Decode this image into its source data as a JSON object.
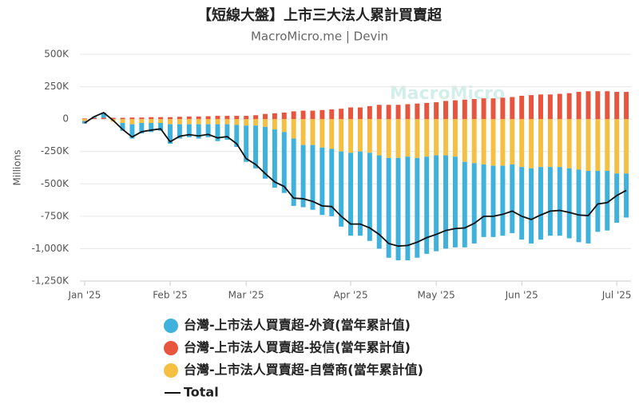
{
  "chart_data": {
    "type": "bar",
    "title": "【短線大盤】上市三大法人累計買賣超",
    "subtitle": "MacroMicro.me | Devin",
    "watermark": "MacroMicro",
    "y_label": "Millions",
    "ylim": [
      -1250000,
      500000
    ],
    "yticks": [
      {
        "value": 500000,
        "label": "500K"
      },
      {
        "value": 250000,
        "label": "250K"
      },
      0,
      {
        "value": -250000,
        "label": "-250K"
      },
      {
        "value": -500000,
        "label": "-500K"
      },
      {
        "value": -750000,
        "label": "-750K"
      },
      {
        "value": -1000000,
        "label": "-1,000K"
      },
      {
        "value": -1250000,
        "label": "-1,250K"
      }
    ],
    "categories": [
      "Jan '25",
      null,
      null,
      null,
      null,
      null,
      null,
      null,
      null,
      "Feb '25",
      null,
      null,
      null,
      null,
      null,
      null,
      null,
      "Mar '25",
      null,
      null,
      null,
      null,
      null,
      null,
      null,
      null,
      null,
      null,
      "Apr '25",
      null,
      null,
      null,
      null,
      null,
      null,
      null,
      null,
      "May '25",
      null,
      null,
      null,
      null,
      null,
      null,
      null,
      null,
      "Jun '25",
      null,
      null,
      null,
      null,
      null,
      null,
      null,
      null,
      null,
      "Jul '25",
      null
    ],
    "series": [
      {
        "name": "台灣-上市法人買賣超-外資(當年累計值)",
        "color": "#3fb1dd",
        "values": [
          -20000,
          10000,
          40000,
          0,
          -60000,
          -110000,
          -80000,
          -70000,
          -60000,
          -150000,
          -110000,
          -100000,
          -110000,
          -100000,
          -130000,
          -120000,
          -170000,
          -280000,
          -330000,
          -400000,
          -450000,
          -470000,
          -520000,
          -480000,
          -500000,
          -520000,
          -520000,
          -580000,
          -640000,
          -650000,
          -680000,
          -720000,
          -770000,
          -790000,
          -800000,
          -770000,
          -750000,
          -740000,
          -720000,
          -700000,
          -660000,
          -620000,
          -560000,
          -550000,
          -540000,
          -530000,
          -560000,
          -580000,
          -560000,
          -530000,
          -530000,
          -540000,
          -560000,
          -560000,
          -470000,
          -460000,
          -380000,
          -340000
        ]
      },
      {
        "name": "台灣-上市法人買賣超-投信(當年累計值)",
        "color": "#e8553e",
        "values": [
          5000,
          8000,
          10000,
          10000,
          10000,
          12000,
          12000,
          15000,
          15000,
          15000,
          18000,
          20000,
          20000,
          22000,
          25000,
          25000,
          25000,
          25000,
          30000,
          40000,
          45000,
          50000,
          60000,
          65000,
          65000,
          70000,
          75000,
          80000,
          90000,
          90000,
          100000,
          110000,
          110000,
          110000,
          115000,
          120000,
          125000,
          130000,
          140000,
          145000,
          150000,
          155000,
          160000,
          160000,
          165000,
          170000,
          180000,
          185000,
          190000,
          190000,
          195000,
          200000,
          210000,
          215000,
          215000,
          215000,
          210000,
          210000
        ]
      },
      {
        "name": "台灣-上市法人買賣超-自營商(當年累計值)",
        "color": "#f5bf42",
        "values": [
          -15000,
          0,
          0,
          -20000,
          -30000,
          -40000,
          -30000,
          -30000,
          -30000,
          -40000,
          -40000,
          -40000,
          -40000,
          -40000,
          -40000,
          -40000,
          -45000,
          -50000,
          -50000,
          -60000,
          -80000,
          -100000,
          -150000,
          -200000,
          -200000,
          -220000,
          -230000,
          -250000,
          -260000,
          -250000,
          -260000,
          -280000,
          -300000,
          -300000,
          -290000,
          -300000,
          -290000,
          -280000,
          -280000,
          -290000,
          -330000,
          -340000,
          -350000,
          -360000,
          -360000,
          -350000,
          -370000,
          -380000,
          -370000,
          -370000,
          -370000,
          -380000,
          -390000,
          -400000,
          -400000,
          -400000,
          -420000,
          -420000
        ]
      },
      {
        "name": "Total",
        "type": "line",
        "color": "#111111",
        "values": [
          -30000,
          18000,
          50000,
          -10000,
          -80000,
          -138000,
          -98000,
          -85000,
          -75000,
          -175000,
          -132000,
          -120000,
          -130000,
          -118000,
          -145000,
          -135000,
          -190000,
          -305000,
          -350000,
          -420000,
          -485000,
          -520000,
          -610000,
          -615000,
          -635000,
          -670000,
          -675000,
          -750000,
          -810000,
          -810000,
          -840000,
          -890000,
          -960000,
          -980000,
          -975000,
          -950000,
          -915000,
          -890000,
          -860000,
          -845000,
          -840000,
          -805000,
          -750000,
          -750000,
          -735000,
          -710000,
          -750000,
          -775000,
          -740000,
          -710000,
          -705000,
          -720000,
          -740000,
          -745000,
          -655000,
          -645000,
          -590000,
          -550000
        ]
      }
    ],
    "grid": true
  }
}
